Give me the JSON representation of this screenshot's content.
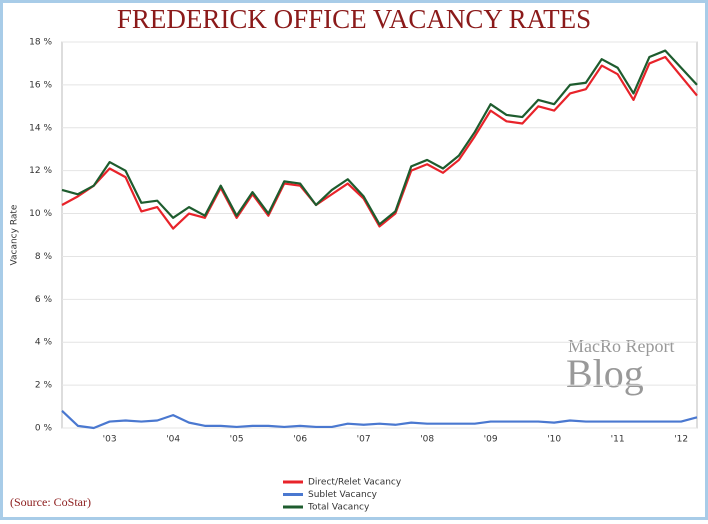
{
  "chart_data": {
    "type": "line",
    "title": "FREDERICK OFFICE VACANCY RATES",
    "y_label": "Vacancy Rate",
    "source": "(Source: CoStar)",
    "watermark": [
      "MacRo Report",
      "Blog"
    ],
    "categories": [
      null,
      null,
      null,
      "'03",
      null,
      null,
      null,
      "'04",
      null,
      null,
      null,
      "'05",
      null,
      null,
      null,
      "'06",
      null,
      null,
      null,
      "'07",
      null,
      null,
      null,
      "'08",
      null,
      null,
      null,
      "'09",
      null,
      null,
      null,
      "'10",
      null,
      null,
      null,
      "'11",
      null,
      null,
      null,
      "'12",
      null
    ],
    "series": [
      {
        "name": "Direct/Relet Vacancy",
        "color": "#e8232a",
        "values": [
          10.4,
          10.8,
          11.3,
          12.1,
          11.7,
          10.1,
          10.3,
          9.3,
          10.0,
          9.8,
          11.2,
          9.8,
          10.9,
          9.9,
          11.4,
          11.3,
          10.4,
          10.9,
          11.4,
          10.7,
          9.4,
          10.0,
          12.0,
          12.3,
          11.9,
          12.5,
          13.6,
          14.8,
          14.3,
          14.2,
          15.0,
          14.8,
          15.6,
          15.8,
          16.9,
          16.5,
          15.3,
          17.0,
          17.3,
          16.4,
          15.5
        ]
      },
      {
        "name": "Sublet Vacancy",
        "color": "#4a78d0",
        "values": [
          0.8,
          0.1,
          0.0,
          0.3,
          0.35,
          0.3,
          0.35,
          0.6,
          0.25,
          0.1,
          0.1,
          0.05,
          0.1,
          0.1,
          0.05,
          0.1,
          0.05,
          0.05,
          0.2,
          0.15,
          0.2,
          0.15,
          0.25,
          0.2,
          0.2,
          0.2,
          0.2,
          0.3,
          0.3,
          0.3,
          0.3,
          0.25,
          0.35,
          0.3,
          0.3,
          0.3,
          0.3,
          0.3,
          0.3,
          0.3,
          0.5
        ]
      },
      {
        "name": "Total Vacancy",
        "color": "#1e5c2e",
        "values": [
          11.1,
          10.9,
          11.3,
          12.4,
          12.0,
          10.5,
          10.6,
          9.8,
          10.3,
          9.9,
          11.3,
          9.9,
          11.0,
          10.0,
          11.5,
          11.4,
          10.4,
          11.1,
          11.6,
          10.8,
          9.5,
          10.1,
          12.2,
          12.5,
          12.1,
          12.7,
          13.8,
          15.1,
          14.6,
          14.5,
          15.3,
          15.1,
          16.0,
          16.1,
          17.2,
          16.8,
          15.6,
          17.3,
          17.6,
          16.8,
          16.0
        ]
      }
    ],
    "ylim": [
      0,
      18
    ],
    "yticks": [
      {
        "value": 0,
        "label": "0 %"
      },
      {
        "value": 2,
        "label": "2 %"
      },
      {
        "value": 4,
        "label": "4 %"
      },
      {
        "value": 6,
        "label": "6 %"
      },
      {
        "value": 8,
        "label": "8 %"
      },
      {
        "value": 10,
        "label": "10 %"
      },
      {
        "value": 12,
        "label": "12 %"
      },
      {
        "value": 14,
        "label": "14 %"
      },
      {
        "value": 16,
        "label": "16 %"
      },
      {
        "value": 18,
        "label": "18 %"
      }
    ],
    "grid": true
  }
}
